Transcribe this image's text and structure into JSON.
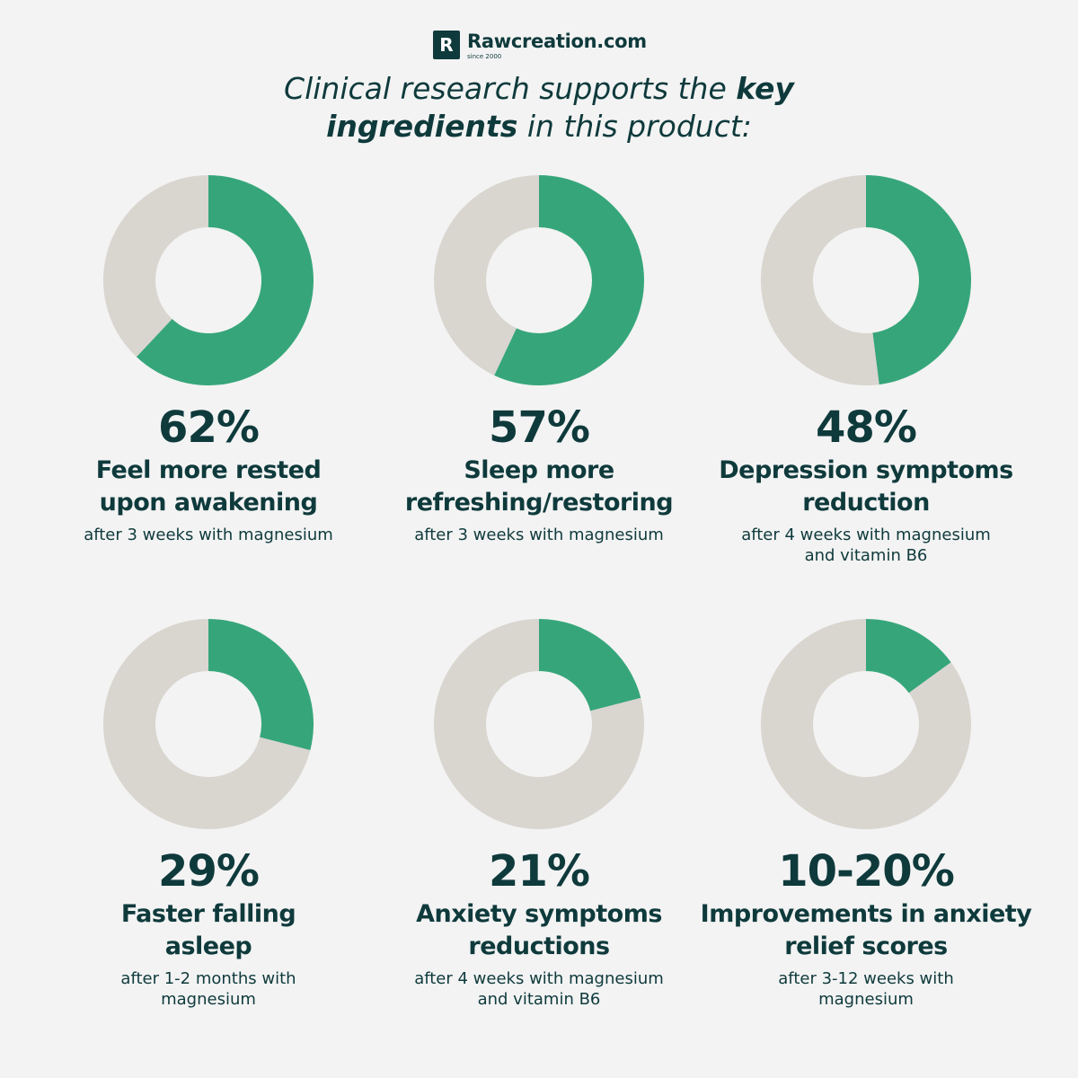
{
  "brand": {
    "letter": "R",
    "name": "Rawcreation.com",
    "since": "since 2000"
  },
  "headline": {
    "part1": "Clinical research supports the ",
    "bold1": "key",
    "bold2": "ingredients",
    "part2": " in this product:"
  },
  "colors": {
    "fill": "#36a67a",
    "track": "#d9d5cf",
    "text": "#0f3a3c",
    "background": "#f3f3f3"
  },
  "chart_data": [
    {
      "type": "pie",
      "value_label": "62%",
      "values": [
        62,
        38
      ],
      "label": "Feel more rested upon awakening",
      "note": "after 3 weeks with magnesium"
    },
    {
      "type": "pie",
      "value_label": "57%",
      "values": [
        57,
        43
      ],
      "label": "Sleep more refreshing/restoring",
      "note": "after 3 weeks with magnesium"
    },
    {
      "type": "pie",
      "value_label": "48%",
      "values": [
        48,
        52
      ],
      "label": "Depression symptoms reduction",
      "note": "after 4 weeks with magnesium and vitamin B6"
    },
    {
      "type": "pie",
      "value_label": "29%",
      "values": [
        29,
        71
      ],
      "label": "Faster falling asleep",
      "note": "after 1-2 months with magnesium"
    },
    {
      "type": "pie",
      "value_label": "21%",
      "values": [
        21,
        79
      ],
      "label": "Anxiety symptoms reductions",
      "note": "after 4 weeks with magnesium and vitamin B6"
    },
    {
      "type": "pie",
      "value_label": "10-20%",
      "values": [
        15,
        85
      ],
      "label": "Improvements in anxiety relief scores",
      "note": "after 3-12 weeks with magnesium"
    }
  ]
}
